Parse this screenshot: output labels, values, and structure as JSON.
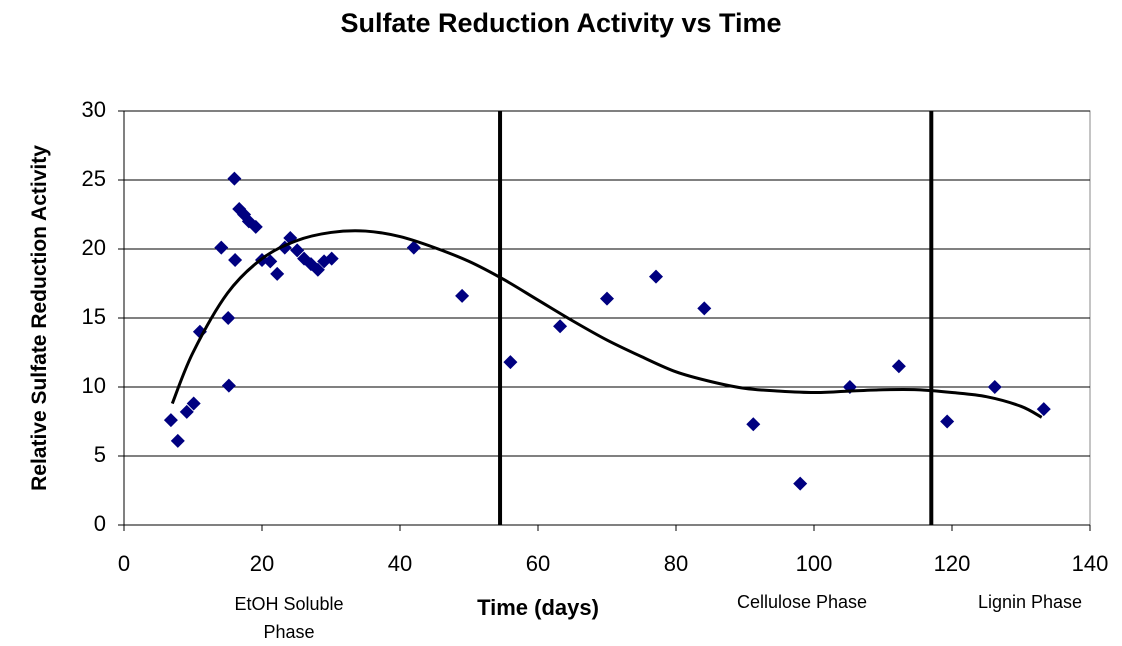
{
  "chart_data": {
    "type": "scatter",
    "title": "Sulfate Reduction Activity vs Time",
    "x_label": "Time (days)",
    "y_label": "Relative Sulfate Reduction Activity",
    "xlim": [
      0,
      140
    ],
    "xticks": [
      0,
      20,
      40,
      60,
      80,
      100,
      120,
      140
    ],
    "ylim": [
      0,
      30
    ],
    "yticks": [
      0,
      5,
      10,
      15,
      20,
      25,
      30
    ],
    "grid": true,
    "series": [
      {
        "color": "#000080",
        "x": [
          6.8,
          7.8,
          9.1,
          10.1,
          11,
          14.1,
          15.1,
          15.2,
          16,
          16.1,
          16.7,
          17.4,
          18.1,
          19.1,
          20,
          21.2,
          22.2,
          23.3,
          24.1,
          25.1,
          26.1,
          27.1,
          28.1,
          29,
          30.1,
          42,
          49,
          56,
          63.2,
          70,
          77.1,
          84.1,
          91.2,
          98,
          105.2,
          112.3,
          119.3,
          126.2,
          133.3
        ],
        "values": [
          7.6,
          6.1,
          8.2,
          8.8,
          14,
          20.1,
          15,
          10.1,
          25.1,
          19.2,
          22.9,
          22.5,
          22,
          21.6,
          19.2,
          19.1,
          18.2,
          20.1,
          20.8,
          19.9,
          19.3,
          18.9,
          18.5,
          19.1,
          19.3,
          20.1,
          16.6,
          11.8,
          14.4,
          16.4,
          18,
          15.7,
          7.3,
          3,
          10,
          11.5,
          7.5,
          10,
          8.4
        ]
      },
      {
        "type": "line",
        "color": "#000000",
        "x": [
          7,
          10,
          15,
          20,
          25,
          30,
          35,
          40,
          45,
          50,
          55,
          60,
          65,
          70,
          75,
          80,
          85,
          90,
          95,
          100,
          105,
          110,
          115,
          120,
          125,
          130,
          133
        ],
        "values": [
          8.8,
          12.5,
          16.8,
          19.3,
          20.6,
          21.2,
          21.3,
          20.9,
          20.1,
          19.1,
          17.8,
          16.3,
          14.8,
          13.4,
          12.2,
          11.1,
          10.4,
          9.9,
          9.7,
          9.6,
          9.7,
          9.8,
          9.8,
          9.6,
          9.3,
          8.6,
          7.8
        ]
      }
    ],
    "vertical_lines": [
      54.5,
      117
    ],
    "annotations": [
      "EtOH Soluble Phase",
      "Cellulose Phase",
      "Lignin Phase"
    ]
  }
}
